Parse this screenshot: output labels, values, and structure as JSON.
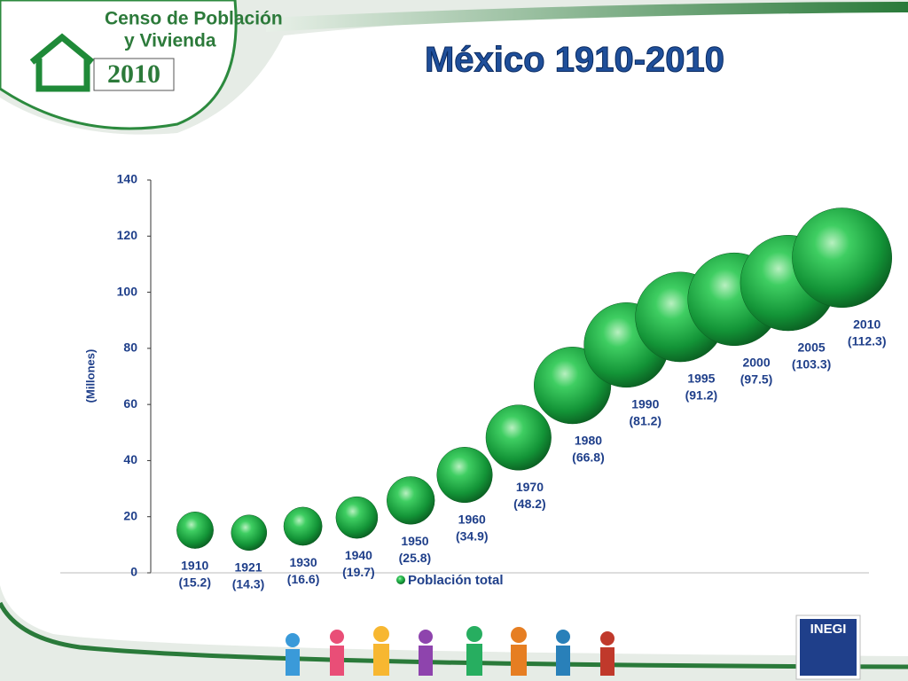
{
  "header": {
    "line1": "Censo de Población",
    "line2": "y Vivienda",
    "year": "2010"
  },
  "footer": {
    "logo": "INEGI"
  },
  "chart_data": {
    "type": "bubble",
    "title": "México 1910-2010",
    "y_label": "(Millones)",
    "categories": [
      "1910",
      "1921",
      "1930",
      "1940",
      "1950",
      "1960",
      "1970",
      "1980",
      "1990",
      "1995",
      "2000",
      "2005",
      "2010"
    ],
    "series": [
      {
        "name": "Población total",
        "color": "#1a9a3c",
        "values": [
          15.2,
          14.3,
          16.6,
          19.7,
          25.8,
          34.9,
          48.2,
          66.8,
          81.2,
          91.2,
          97.5,
          103.3,
          112.3
        ],
        "value_labels": [
          "(15.2)",
          "(14.3)",
          "(16.6)",
          "(19.7)",
          "(25.8)",
          "(34.9)",
          "(48.2)",
          "(66.8)",
          "(81.2)",
          "(91.2)",
          "(97.5)",
          "(103.3)",
          "(112.3)"
        ]
      }
    ],
    "ylim": [
      0,
      140
    ],
    "yticks": [
      0,
      20,
      40,
      60,
      80,
      100,
      120,
      140
    ],
    "grid": false,
    "legend": "bottom"
  }
}
